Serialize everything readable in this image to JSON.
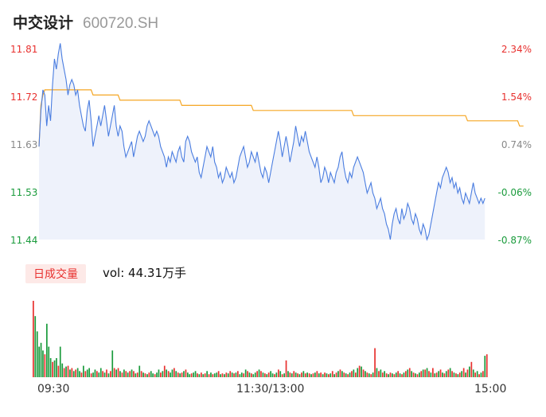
{
  "header": {
    "name": "中交设计",
    "code": "600720.SH"
  },
  "price_axis": {
    "ticks": [
      "11.81",
      "11.72",
      "11.63",
      "11.53",
      "11.44"
    ]
  },
  "pct_axis": {
    "ticks": [
      "2.34%",
      "1.54%",
      "0.74%",
      "-0.06%",
      "-0.87%"
    ]
  },
  "volume": {
    "tag": "日成交量",
    "label": "vol: 44.31万手"
  },
  "time_axis": {
    "labels": [
      "09:30",
      "11:30/13:00",
      "15:00"
    ]
  },
  "colors": {
    "price_line": "#4a7de0",
    "avg_line": "#f5a623",
    "up": "#e8312f",
    "down": "#1a9b3c",
    "area": "#eef2fb"
  },
  "chart_data": [
    {
      "type": "line",
      "title": "",
      "xlabel": "",
      "ylabel": "",
      "ylim": [
        11.44,
        11.81
      ],
      "x_range": [
        0,
        240
      ],
      "series": [
        {
          "values": [
            11.62,
            11.69,
            11.73,
            11.72,
            11.66,
            11.7,
            11.67,
            11.74,
            11.79,
            11.77,
            11.8,
            11.82,
            11.79,
            11.77,
            11.75,
            11.72,
            11.74,
            11.75,
            11.74,
            11.72,
            11.73,
            11.7,
            11.68,
            11.66,
            11.65,
            11.69,
            11.71,
            11.67,
            11.62,
            11.64,
            11.66,
            11.68,
            11.66,
            11.68,
            11.7,
            11.67,
            11.64,
            11.66,
            11.68,
            11.7,
            11.66,
            11.64,
            11.66,
            11.65,
            11.62,
            11.6,
            11.61,
            11.62,
            11.63,
            11.6,
            11.62,
            11.64,
            11.65,
            11.64,
            11.63,
            11.64,
            11.66,
            11.67,
            11.66,
            11.65,
            11.64,
            11.65,
            11.64,
            11.62,
            11.61,
            11.6,
            11.58,
            11.6,
            11.59,
            11.61,
            11.6,
            11.59,
            11.61,
            11.62,
            11.6,
            11.59,
            11.63,
            11.64,
            11.63,
            11.61,
            11.6,
            11.59,
            11.6,
            11.57,
            11.56,
            11.58,
            11.6,
            11.62,
            11.61,
            11.6,
            11.62,
            11.59,
            11.58,
            11.56,
            11.57,
            11.55,
            11.56,
            11.58,
            11.57,
            11.56,
            11.57,
            11.55,
            11.56,
            11.58,
            11.6,
            11.61,
            11.62,
            11.6,
            11.58,
            11.59,
            11.61,
            11.6,
            11.59,
            11.61,
            11.59,
            11.57,
            11.56,
            11.58,
            11.57,
            11.55,
            11.57,
            11.59,
            11.61,
            11.63,
            11.65,
            11.63,
            11.6,
            11.62,
            11.64,
            11.62,
            11.59,
            11.61,
            11.63,
            11.66,
            11.64,
            11.62,
            11.64,
            11.63,
            11.65,
            11.63,
            11.61,
            11.6,
            11.59,
            11.58,
            11.6,
            11.58,
            11.55,
            11.56,
            11.58,
            11.57,
            11.55,
            11.57,
            11.56,
            11.55,
            11.57,
            11.58,
            11.6,
            11.61,
            11.58,
            11.56,
            11.55,
            11.57,
            11.56,
            11.58,
            11.59,
            11.6,
            11.59,
            11.58,
            11.57,
            11.55,
            11.53,
            11.54,
            11.55,
            11.53,
            11.52,
            11.5,
            11.51,
            11.52,
            11.5,
            11.49,
            11.47,
            11.46,
            11.44,
            11.47,
            11.49,
            11.5,
            11.48,
            11.47,
            11.5,
            11.48,
            11.49,
            11.51,
            11.5,
            11.48,
            11.47,
            11.49,
            11.48,
            11.46,
            11.45,
            11.47,
            11.46,
            11.44,
            11.45,
            11.47,
            11.49,
            11.51,
            11.53,
            11.55,
            11.54,
            11.56,
            11.57,
            11.58,
            11.57,
            11.55,
            11.56,
            11.54,
            11.55,
            11.53,
            11.54,
            11.52,
            11.51,
            11.53,
            11.52,
            11.51,
            11.53,
            11.55,
            11.53,
            11.52,
            11.51,
            11.52,
            11.51,
            11.52
          ]
        },
        {
          "values": [
            11.62,
            11.7,
            11.72,
            11.73,
            11.73,
            11.73,
            11.73,
            11.73,
            11.73,
            11.73,
            11.73,
            11.73,
            11.73,
            11.73,
            11.73,
            11.73,
            11.73,
            11.73,
            11.73,
            11.73,
            11.73,
            11.73,
            11.73,
            11.73,
            11.73,
            11.73,
            11.73,
            11.73,
            11.72,
            11.72,
            11.72,
            11.72,
            11.72,
            11.72,
            11.72,
            11.72,
            11.72,
            11.72,
            11.72,
            11.72,
            11.72,
            11.72,
            11.71,
            11.71,
            11.71,
            11.71,
            11.71,
            11.71,
            11.71,
            11.71,
            11.71,
            11.71,
            11.71,
            11.71,
            11.71,
            11.71,
            11.71,
            11.71,
            11.71,
            11.71,
            11.71,
            11.71,
            11.71,
            11.71,
            11.71,
            11.71,
            11.71,
            11.71,
            11.71,
            11.71,
            11.71,
            11.71,
            11.71,
            11.71,
            11.7,
            11.7,
            11.7,
            11.7,
            11.7,
            11.7,
            11.7,
            11.7,
            11.7,
            11.7,
            11.7,
            11.7,
            11.7,
            11.7,
            11.7,
            11.7,
            11.7,
            11.7,
            11.7,
            11.7,
            11.7,
            11.7,
            11.7,
            11.7,
            11.7,
            11.7,
            11.7,
            11.7,
            11.7,
            11.7,
            11.7,
            11.7,
            11.7,
            11.7,
            11.7,
            11.7,
            11.7,
            11.69,
            11.69,
            11.69,
            11.69,
            11.69,
            11.69,
            11.69,
            11.69,
            11.69,
            11.69,
            11.69,
            11.69,
            11.69,
            11.69,
            11.69,
            11.69,
            11.69,
            11.69,
            11.69,
            11.69,
            11.69,
            11.69,
            11.69,
            11.69,
            11.69,
            11.69,
            11.69,
            11.69,
            11.69,
            11.69,
            11.69,
            11.69,
            11.69,
            11.69,
            11.69,
            11.69,
            11.69,
            11.69,
            11.69,
            11.69,
            11.69,
            11.69,
            11.69,
            11.69,
            11.69,
            11.69,
            11.69,
            11.69,
            11.69,
            11.69,
            11.69,
            11.69,
            11.68,
            11.68,
            11.68,
            11.68,
            11.68,
            11.68,
            11.68,
            11.68,
            11.68,
            11.68,
            11.68,
            11.68,
            11.68,
            11.68,
            11.68,
            11.68,
            11.68,
            11.68,
            11.68,
            11.68,
            11.68,
            11.68,
            11.68,
            11.68,
            11.68,
            11.68,
            11.68,
            11.68,
            11.68,
            11.68,
            11.68,
            11.68,
            11.68,
            11.68,
            11.68,
            11.68,
            11.68,
            11.68,
            11.68,
            11.68,
            11.68,
            11.68,
            11.68,
            11.68,
            11.68,
            11.68,
            11.68,
            11.68,
            11.68,
            11.68,
            11.68,
            11.68,
            11.68,
            11.68,
            11.68,
            11.68,
            11.68,
            11.68,
            11.68,
            11.67,
            11.67,
            11.67,
            11.67,
            11.67,
            11.67,
            11.67,
            11.67,
            11.67,
            11.67,
            11.67,
            11.67,
            11.67,
            11.67,
            11.67,
            11.67,
            11.67,
            11.67,
            11.67,
            11.67,
            11.67,
            11.67,
            11.67,
            11.67,
            11.67,
            11.67,
            11.67,
            11.66,
            11.66,
            11.66
          ]
        }
      ]
    },
    {
      "type": "bar",
      "title": "",
      "xlabel": "",
      "ylabel": "",
      "series": [
        {
          "values": [
            100,
            80,
            60,
            40,
            45,
            35,
            30,
            70,
            40,
            25,
            20,
            22,
            25,
            15,
            40,
            18,
            12,
            14,
            15,
            10,
            12,
            8,
            10,
            12,
            8,
            6,
            15,
            8,
            10,
            12,
            5,
            6,
            10,
            8,
            6,
            12,
            8,
            6,
            10,
            5,
            8,
            35,
            12,
            10,
            12,
            8,
            6,
            10,
            8,
            6,
            8,
            10,
            8,
            5,
            6,
            15,
            8,
            6,
            5,
            4,
            6,
            8,
            5,
            4,
            6,
            10,
            6,
            8,
            15,
            10,
            8,
            6,
            10,
            12,
            8,
            6,
            5,
            6,
            8,
            10,
            6,
            4,
            5,
            6,
            8,
            5,
            4,
            6,
            4,
            5,
            8,
            4,
            6,
            4,
            5,
            6,
            8,
            4,
            5,
            4,
            6,
            5,
            8,
            6,
            5,
            6,
            8,
            4,
            6,
            5,
            10,
            8,
            6,
            5,
            4,
            6,
            8,
            10,
            8,
            6,
            5,
            4,
            6,
            8,
            5,
            4,
            6,
            10,
            8,
            4,
            5,
            22,
            8,
            6,
            5,
            8,
            6,
            5,
            4,
            6,
            8,
            5,
            6,
            5,
            4,
            5,
            6,
            8,
            5,
            6,
            4,
            6,
            5,
            4,
            5,
            8,
            4,
            6,
            8,
            10,
            8,
            6,
            5,
            4,
            6,
            8,
            10,
            6,
            12,
            15,
            14,
            10,
            8,
            6,
            5,
            4,
            6,
            38,
            12,
            8,
            10,
            6,
            8,
            5,
            4,
            6,
            5,
            4,
            6,
            8,
            5,
            4,
            6,
            8,
            10,
            12,
            8,
            6,
            5,
            4,
            6,
            8,
            10,
            10,
            12,
            8,
            6,
            12,
            5,
            6,
            8,
            10,
            6,
            5,
            8,
            10,
            12,
            8,
            6,
            5,
            4,
            6,
            8,
            12,
            6,
            10,
            14,
            20,
            10,
            6,
            8,
            4,
            6,
            8,
            28,
            30
          ],
          "colors": [
            "up",
            "down",
            "down",
            "down",
            "down",
            "down",
            "up",
            "down",
            "down",
            "down",
            "up",
            "down",
            "down",
            "up",
            "down",
            "down",
            "up",
            "down",
            "up",
            "down",
            "up",
            "down",
            "up",
            "down",
            "down",
            "up",
            "down",
            "up",
            "down",
            "down",
            "up",
            "down",
            "down",
            "up",
            "down",
            "down",
            "up",
            "down",
            "up",
            "down",
            "up",
            "down",
            "up",
            "down",
            "up",
            "down",
            "up",
            "down",
            "up",
            "down",
            "up",
            "down",
            "up",
            "down",
            "up",
            "down",
            "up",
            "down",
            "up",
            "down",
            "up",
            "down",
            "down",
            "up",
            "down",
            "down",
            "up",
            "down",
            "up",
            "down",
            "up",
            "down",
            "down",
            "up",
            "down",
            "up",
            "down",
            "up",
            "down",
            "up",
            "down",
            "down",
            "up",
            "down",
            "down",
            "up",
            "down",
            "up",
            "down",
            "up",
            "down",
            "up",
            "down",
            "up",
            "down",
            "down",
            "up",
            "down",
            "up",
            "down",
            "up",
            "down",
            "up",
            "down",
            "up",
            "down",
            "up",
            "down",
            "down",
            "up",
            "down",
            "up",
            "down",
            "up",
            "down",
            "down",
            "up",
            "down",
            "up",
            "down",
            "up",
            "down",
            "up",
            "down",
            "down",
            "up",
            "down",
            "up",
            "down",
            "up",
            "down",
            "up",
            "down",
            "up",
            "down",
            "up",
            "down",
            "up",
            "down",
            "up",
            "down",
            "up",
            "down",
            "up",
            "down",
            "up",
            "down",
            "up",
            "down",
            "up",
            "down",
            "up",
            "down",
            "up",
            "down",
            "up",
            "down",
            "up",
            "down",
            "up",
            "down",
            "up",
            "down",
            "up",
            "down",
            "up",
            "down",
            "up",
            "down",
            "up",
            "down",
            "up",
            "down",
            "up",
            "down",
            "up",
            "down",
            "up",
            "down",
            "up",
            "down",
            "up",
            "down",
            "up",
            "down",
            "up",
            "down",
            "up",
            "down",
            "up",
            "down",
            "up",
            "down",
            "up",
            "down",
            "up",
            "down",
            "up",
            "down",
            "up",
            "down",
            "up",
            "down",
            "up",
            "down",
            "up",
            "down",
            "up",
            "down",
            "up",
            "down",
            "up",
            "down",
            "up",
            "down",
            "up",
            "down",
            "up",
            "down",
            "up",
            "down",
            "up",
            "down",
            "up",
            "down",
            "up",
            "down",
            "up",
            "down",
            "up",
            "down",
            "up",
            "down",
            "up",
            "down",
            "up",
            "down",
            "up",
            "down",
            "up",
            "down",
            "down",
            "up",
            "down",
            "down",
            "up",
            "up"
          ]
        }
      ]
    }
  ]
}
